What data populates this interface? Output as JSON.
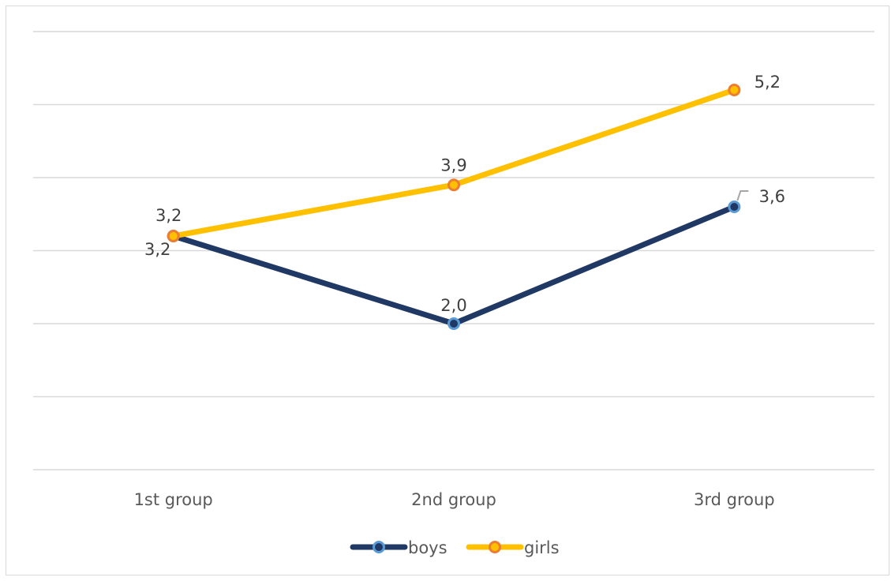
{
  "chart_data": {
    "type": "line",
    "categories": [
      "1st group",
      "2nd group",
      "3rd group"
    ],
    "series": [
      {
        "name": "boys",
        "values": [
          3.2,
          2.0,
          3.6
        ],
        "labels": [
          "3,2",
          "2,0",
          "3,6"
        ],
        "color": "#203864",
        "marker_fill": "#203864",
        "marker_stroke": "#5b9bd5"
      },
      {
        "name": "girls",
        "values": [
          3.2,
          3.9,
          5.2
        ],
        "labels": [
          "3,2",
          "3,9",
          "5,2"
        ],
        "color": "#ffc000",
        "marker_fill": "#ffc000",
        "marker_stroke": "#ed7d31"
      }
    ],
    "ylim": [
      0,
      6
    ],
    "y_major_unit": 1,
    "grid": true,
    "y_tick_labels_shown": false,
    "legend_position": "bottom",
    "title": "",
    "xlabel": "",
    "ylabel": ""
  }
}
